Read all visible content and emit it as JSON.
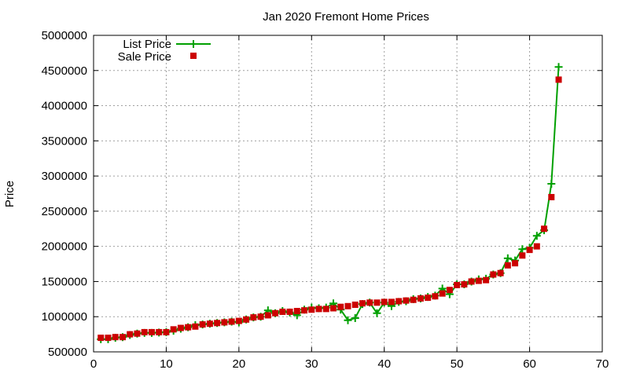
{
  "chart_data": {
    "type": "line",
    "title": "Jan 2020 Fremont Home Prices",
    "xlabel": "",
    "ylabel": "Price",
    "xlim": [
      0,
      70
    ],
    "ylim": [
      500000,
      5000000
    ],
    "xticks": [
      0,
      10,
      20,
      30,
      40,
      50,
      60,
      70
    ],
    "yticks": [
      500000,
      1000000,
      1500000,
      2000000,
      2500000,
      3000000,
      3500000,
      4000000,
      4500000,
      5000000
    ],
    "grid": true,
    "legend_position": "top-left",
    "x": [
      1,
      2,
      3,
      4,
      5,
      6,
      7,
      8,
      9,
      10,
      11,
      12,
      13,
      14,
      15,
      16,
      17,
      18,
      19,
      20,
      21,
      22,
      23,
      24,
      25,
      26,
      27,
      28,
      29,
      30,
      31,
      32,
      33,
      34,
      35,
      36,
      37,
      38,
      39,
      40,
      41,
      42,
      43,
      44,
      45,
      46,
      47,
      48,
      49,
      50,
      51,
      52,
      53,
      54,
      55,
      56,
      57,
      58,
      59,
      60,
      61,
      62,
      63,
      64
    ],
    "series": [
      {
        "name": "List Price",
        "style": "line+cross",
        "color": "#00a000",
        "values": [
          680000,
          680000,
          700000,
          710000,
          740000,
          760000,
          770000,
          770000,
          775000,
          780000,
          800000,
          830000,
          850000,
          880000,
          890000,
          900000,
          910000,
          920000,
          930000,
          920000,
          960000,
          990000,
          1000000,
          1090000,
          1050000,
          1080000,
          1060000,
          1020000,
          1100000,
          1130000,
          1120000,
          1130000,
          1190000,
          1100000,
          950000,
          980000,
          1180000,
          1200000,
          1050000,
          1200000,
          1150000,
          1210000,
          1220000,
          1250000,
          1260000,
          1280000,
          1300000,
          1400000,
          1320000,
          1460000,
          1460000,
          1500000,
          1530000,
          1540000,
          1600000,
          1620000,
          1830000,
          1800000,
          1960000,
          1980000,
          2150000,
          2230000,
          2890000,
          4550000
        ]
      },
      {
        "name": "Sale Price",
        "style": "points-square",
        "color": "#cc0000",
        "values": [
          700000,
          700000,
          710000,
          710000,
          750000,
          760000,
          780000,
          780000,
          780000,
          780000,
          820000,
          840000,
          850000,
          860000,
          890000,
          900000,
          910000,
          920000,
          930000,
          940000,
          960000,
          990000,
          1000000,
          1020000,
          1050000,
          1070000,
          1070000,
          1080000,
          1090000,
          1100000,
          1110000,
          1110000,
          1120000,
          1140000,
          1150000,
          1170000,
          1190000,
          1200000,
          1200000,
          1210000,
          1210000,
          1220000,
          1230000,
          1240000,
          1260000,
          1270000,
          1290000,
          1330000,
          1380000,
          1450000,
          1460000,
          1500000,
          1510000,
          1520000,
          1600000,
          1620000,
          1730000,
          1760000,
          1870000,
          1950000,
          2000000,
          2250000,
          2700000,
          4370000
        ]
      }
    ]
  }
}
